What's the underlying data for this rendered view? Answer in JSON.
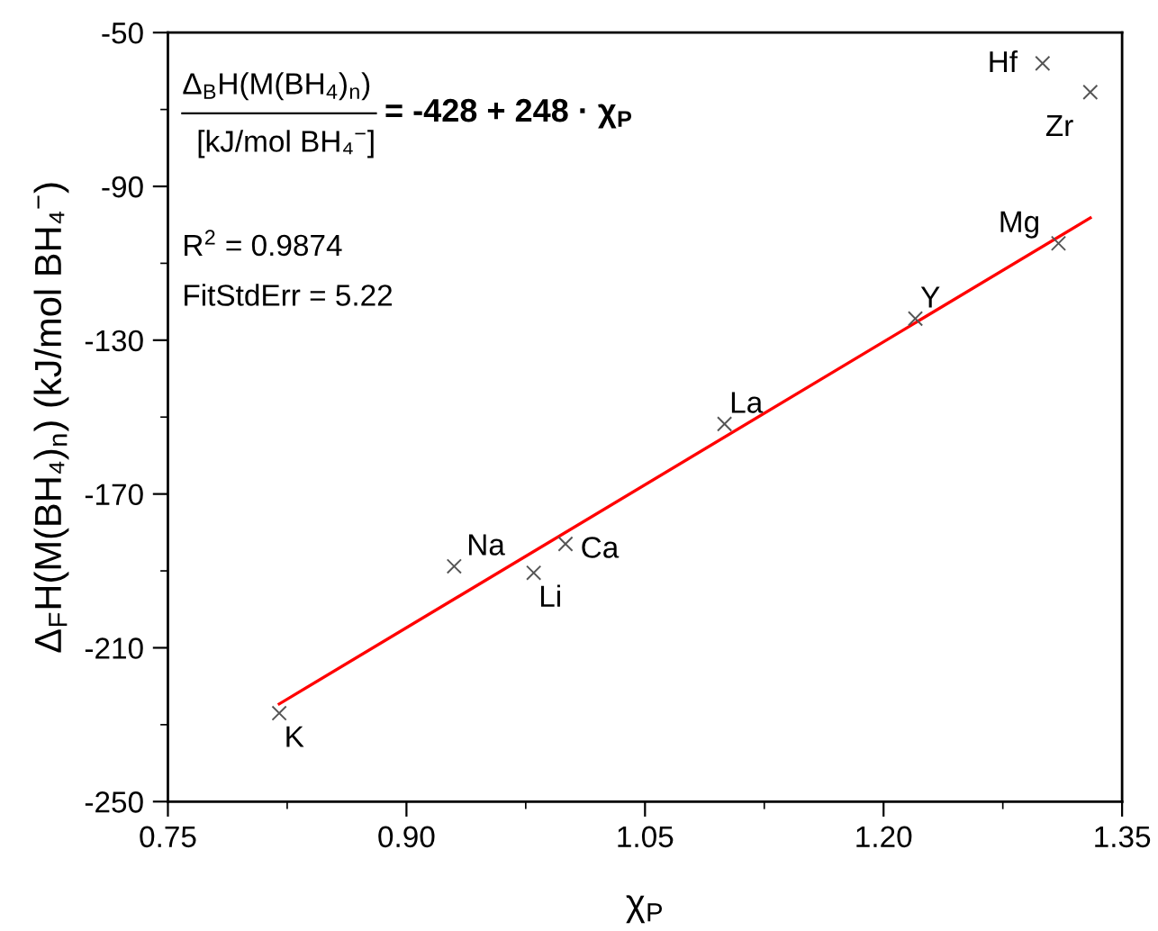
{
  "chart_data": {
    "type": "scatter",
    "xlabel": "χ$_{P}$",
    "ylabel": "Δ$_{F}$H(M(BH₄)$_{n}$) (kJ/mol BH₄$^{−}$)",
    "x": [
      1.3,
      1.33,
      1.31,
      1.22,
      1.1,
      0.93,
      0.98,
      1.0,
      0.82
    ],
    "series": [
      {
        "color": "#555555",
        "marker": "cross",
        "values": [
          -58,
          -65.5,
          -104.8,
          -124.4,
          -151.8,
          -188.8,
          -190.5,
          -183,
          -227
        ]
      },
      {
        "type": "line",
        "color": "#ff0000",
        "x": [
          0.82,
          1.33
        ],
        "values": [
          -224.6,
          -98.2
        ],
        "line_style": "solid",
        "marker": "none"
      }
    ],
    "xlim": [
      0.75,
      1.35
    ],
    "ylim": [
      -250,
      -50
    ],
    "xticks": [
      0.75,
      {
        "value": 0.825,
        "label": null
      },
      {
        "value": 0.9,
        "label": "0.90"
      },
      {
        "value": 0.975,
        "label": null
      },
      1.05,
      {
        "value": 1.125,
        "label": null
      },
      {
        "value": 1.2,
        "label": "1.20"
      },
      {
        "value": 1.275,
        "label": null
      },
      1.35
    ],
    "yticks": [
      -250,
      {
        "value": -230,
        "label": null
      },
      -210,
      {
        "value": -190,
        "label": null
      },
      -170,
      {
        "value": -150,
        "label": null
      },
      -130,
      {
        "value": -110,
        "label": null
      },
      -90,
      {
        "value": -70,
        "label": null
      },
      -50
    ],
    "grid": false,
    "legend": false,
    "annotations": [
      {
        "text": "Hf",
        "x": 1.3,
        "y": -58
      },
      {
        "text": "Zr",
        "x": 1.33,
        "y": -65.5
      },
      {
        "text": "Mg",
        "x": 1.31,
        "y": -104.8
      },
      {
        "text": "Y",
        "x": 1.22,
        "y": -124.4
      },
      {
        "text": "La",
        "x": 1.1,
        "y": -151.8
      },
      {
        "text": "Na",
        "x": 0.93,
        "y": -188.8
      },
      {
        "text": "Li",
        "x": 0.98,
        "y": -190.5
      },
      {
        "text": "Ca",
        "x": 1.0,
        "y": -183
      },
      {
        "text": "K",
        "x": 0.82,
        "y": -227
      },
      "Δ$_{B}$H(M(BH$_{4}$)$_{n}$)",
      "[kJ/mol BH₄$^{−}$]",
      "= -428 + 248 · χ$_{P}$",
      "R$^{2}$ = 0.9874",
      "FitStdErr = 5.22"
    ]
  }
}
